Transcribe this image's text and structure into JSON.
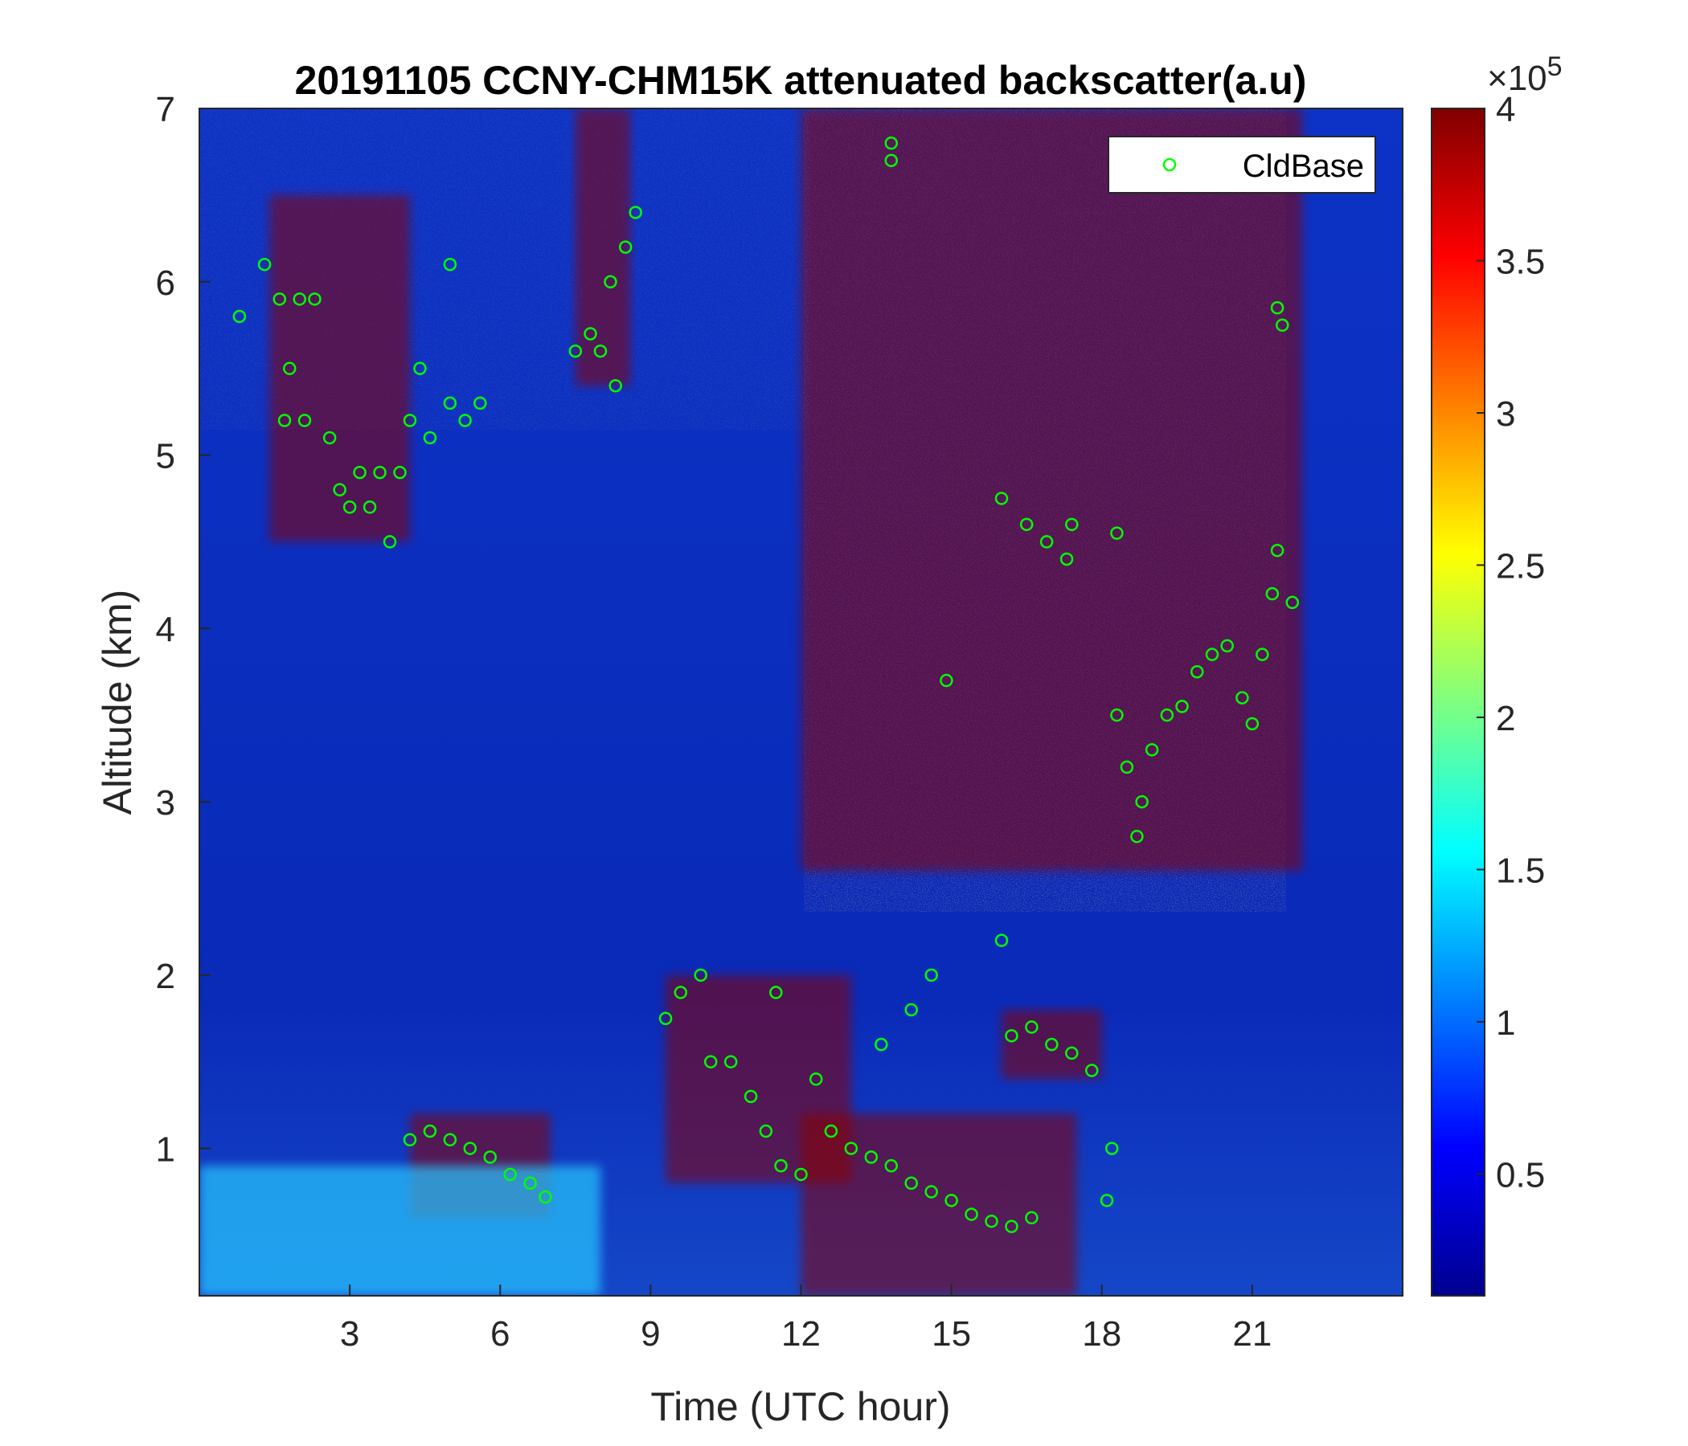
{
  "chart_data": {
    "type": "heatmap",
    "title": "20191105 CCNY-CHM15K attenuated backscatter(a.u)",
    "xlabel": "Time (UTC hour)",
    "ylabel": "Altitude (km)",
    "xlim": [
      0,
      24
    ],
    "ylim": [
      0.15,
      7
    ],
    "xticks": [
      3,
      6,
      9,
      12,
      15,
      18,
      21
    ],
    "xtick_labels": [
      "3",
      "6",
      "9",
      "12",
      "15",
      "18",
      "21"
    ],
    "yticks": [
      1,
      2,
      3,
      4,
      5,
      6,
      7
    ],
    "ytick_labels": [
      "1",
      "2",
      "3",
      "4",
      "5",
      "6",
      "7"
    ],
    "colorbar": {
      "colormap": "jet",
      "clim": [
        0.1,
        4
      ],
      "ticks": [
        0.5,
        1,
        1.5,
        2,
        2.5,
        3,
        3.5,
        4
      ],
      "tick_labels": [
        "0.5",
        "1",
        "1.5",
        "2",
        "2.5",
        "3",
        "3.5",
        "4"
      ],
      "exponent_prefix": "×10",
      "exponent": "5"
    },
    "legend": {
      "placement": "top-right",
      "entries": [
        "CldBase"
      ],
      "marker_color": "#00ff00"
    },
    "cloud_regions": [
      {
        "t": [
          1.4,
          4.2
        ],
        "alt": [
          4.5,
          6.5
        ],
        "level": "high"
      },
      {
        "t": [
          7.5,
          8.6
        ],
        "alt": [
          5.4,
          7.0
        ],
        "level": "high"
      },
      {
        "t": [
          12.0,
          22.0
        ],
        "alt": [
          2.6,
          7.0
        ],
        "level": "high"
      },
      {
        "t": [
          4.2,
          7.0
        ],
        "alt": [
          0.6,
          1.2
        ],
        "level": "high"
      },
      {
        "t": [
          9.3,
          13.0
        ],
        "alt": [
          0.8,
          2.0
        ],
        "level": "high"
      },
      {
        "t": [
          12.0,
          17.5
        ],
        "alt": [
          0.15,
          1.2
        ],
        "level": "high"
      },
      {
        "t": [
          16.0,
          18.0
        ],
        "alt": [
          1.4,
          1.8
        ],
        "level": "high"
      },
      {
        "t": [
          0.0,
          8.0
        ],
        "alt": [
          0.15,
          0.9
        ],
        "level": "mid"
      }
    ],
    "cld_base": [
      {
        "t": 0.8,
        "alt": 5.8
      },
      {
        "t": 1.3,
        "alt": 6.1
      },
      {
        "t": 1.6,
        "alt": 5.9
      },
      {
        "t": 1.7,
        "alt": 5.2
      },
      {
        "t": 1.8,
        "alt": 5.5
      },
      {
        "t": 2.0,
        "alt": 5.9
      },
      {
        "t": 2.1,
        "alt": 5.2
      },
      {
        "t": 2.3,
        "alt": 5.9
      },
      {
        "t": 2.6,
        "alt": 5.1
      },
      {
        "t": 2.8,
        "alt": 4.8
      },
      {
        "t": 3.0,
        "alt": 4.7
      },
      {
        "t": 3.2,
        "alt": 4.9
      },
      {
        "t": 3.4,
        "alt": 4.7
      },
      {
        "t": 3.6,
        "alt": 4.9
      },
      {
        "t": 3.8,
        "alt": 4.5
      },
      {
        "t": 4.0,
        "alt": 4.9
      },
      {
        "t": 4.2,
        "alt": 5.2
      },
      {
        "t": 4.4,
        "alt": 5.5
      },
      {
        "t": 4.6,
        "alt": 5.1
      },
      {
        "t": 5.0,
        "alt": 5.3
      },
      {
        "t": 5.3,
        "alt": 5.2
      },
      {
        "t": 5.6,
        "alt": 5.3
      },
      {
        "t": 5.0,
        "alt": 6.1
      },
      {
        "t": 7.5,
        "alt": 5.6
      },
      {
        "t": 7.8,
        "alt": 5.7
      },
      {
        "t": 8.0,
        "alt": 5.6
      },
      {
        "t": 8.2,
        "alt": 6.0
      },
      {
        "t": 8.3,
        "alt": 5.4
      },
      {
        "t": 8.5,
        "alt": 6.2
      },
      {
        "t": 8.7,
        "alt": 6.4
      },
      {
        "t": 4.2,
        "alt": 1.05
      },
      {
        "t": 4.6,
        "alt": 1.1
      },
      {
        "t": 5.0,
        "alt": 1.05
      },
      {
        "t": 5.4,
        "alt": 1.0
      },
      {
        "t": 5.8,
        "alt": 0.95
      },
      {
        "t": 6.2,
        "alt": 0.85
      },
      {
        "t": 6.6,
        "alt": 0.8
      },
      {
        "t": 6.9,
        "alt": 0.72
      },
      {
        "t": 9.3,
        "alt": 1.75
      },
      {
        "t": 9.6,
        "alt": 1.9
      },
      {
        "t": 10.0,
        "alt": 2.0
      },
      {
        "t": 10.2,
        "alt": 1.5
      },
      {
        "t": 10.6,
        "alt": 1.5
      },
      {
        "t": 11.0,
        "alt": 1.3
      },
      {
        "t": 11.3,
        "alt": 1.1
      },
      {
        "t": 11.6,
        "alt": 0.9
      },
      {
        "t": 11.5,
        "alt": 1.9
      },
      {
        "t": 12.0,
        "alt": 0.85
      },
      {
        "t": 12.3,
        "alt": 1.4
      },
      {
        "t": 12.6,
        "alt": 1.1
      },
      {
        "t": 13.0,
        "alt": 1.0
      },
      {
        "t": 13.4,
        "alt": 0.95
      },
      {
        "t": 13.8,
        "alt": 0.9
      },
      {
        "t": 14.2,
        "alt": 0.8
      },
      {
        "t": 14.6,
        "alt": 0.75
      },
      {
        "t": 15.0,
        "alt": 0.7
      },
      {
        "t": 15.4,
        "alt": 0.62
      },
      {
        "t": 15.8,
        "alt": 0.58
      },
      {
        "t": 16.2,
        "alt": 0.55
      },
      {
        "t": 16.6,
        "alt": 0.6
      },
      {
        "t": 13.6,
        "alt": 1.6
      },
      {
        "t": 14.2,
        "alt": 1.8
      },
      {
        "t": 14.6,
        "alt": 2.0
      },
      {
        "t": 16.0,
        "alt": 2.2
      },
      {
        "t": 16.2,
        "alt": 1.65
      },
      {
        "t": 16.6,
        "alt": 1.7
      },
      {
        "t": 17.0,
        "alt": 1.6
      },
      {
        "t": 17.4,
        "alt": 1.55
      },
      {
        "t": 17.8,
        "alt": 1.45
      },
      {
        "t": 18.1,
        "alt": 0.7
      },
      {
        "t": 18.2,
        "alt": 1.0
      },
      {
        "t": 16.0,
        "alt": 4.75
      },
      {
        "t": 16.5,
        "alt": 4.6
      },
      {
        "t": 16.9,
        "alt": 4.5
      },
      {
        "t": 17.3,
        "alt": 4.4
      },
      {
        "t": 17.4,
        "alt": 4.6
      },
      {
        "t": 18.3,
        "alt": 4.55
      },
      {
        "t": 18.3,
        "alt": 3.5
      },
      {
        "t": 18.5,
        "alt": 3.2
      },
      {
        "t": 18.7,
        "alt": 2.8
      },
      {
        "t": 18.8,
        "alt": 3.0
      },
      {
        "t": 19.0,
        "alt": 3.3
      },
      {
        "t": 19.3,
        "alt": 3.5
      },
      {
        "t": 19.6,
        "alt": 3.55
      },
      {
        "t": 19.9,
        "alt": 3.75
      },
      {
        "t": 20.2,
        "alt": 3.85
      },
      {
        "t": 20.5,
        "alt": 3.9
      },
      {
        "t": 20.8,
        "alt": 3.6
      },
      {
        "t": 21.0,
        "alt": 3.45
      },
      {
        "t": 21.2,
        "alt": 3.85
      },
      {
        "t": 21.4,
        "alt": 4.2
      },
      {
        "t": 21.5,
        "alt": 4.45
      },
      {
        "t": 21.8,
        "alt": 4.15
      },
      {
        "t": 21.5,
        "alt": 5.85
      },
      {
        "t": 21.6,
        "alt": 5.75
      },
      {
        "t": 14.9,
        "alt": 3.7
      },
      {
        "t": 13.8,
        "alt": 6.8
      },
      {
        "t": 13.8,
        "alt": 6.7
      }
    ]
  }
}
